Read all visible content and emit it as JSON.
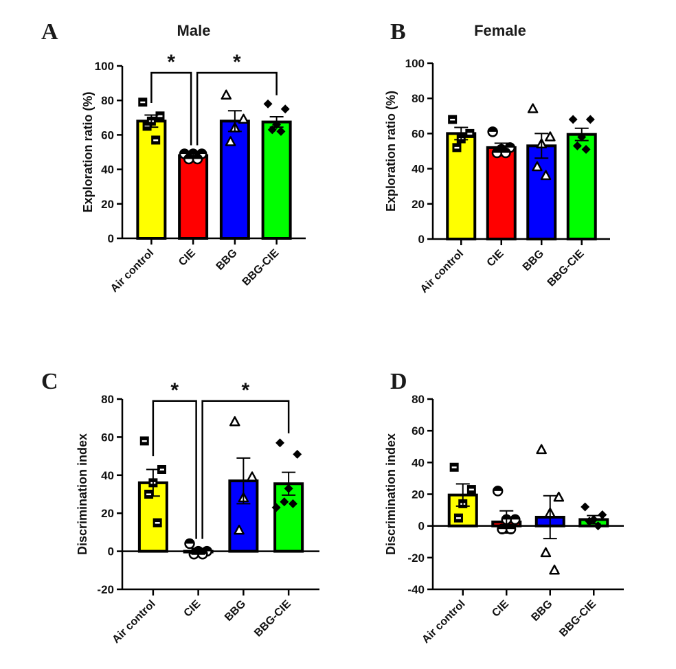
{
  "chart_data": [
    {
      "id": "A",
      "type": "bar",
      "panel_label": "A",
      "title": "Male",
      "xlabel": "",
      "ylabel": "Exploration ratio (%)",
      "ylim": [
        0,
        100
      ],
      "yticks": [
        0,
        20,
        40,
        60,
        80,
        100
      ],
      "categories": [
        "Air control",
        "CIE",
        "BBG",
        "BBG-CIE"
      ],
      "colors": [
        "#ffff00",
        "#ff0000",
        "#0000ff",
        "#00ff00"
      ],
      "markers": [
        "square",
        "circle",
        "triangle",
        "diamond"
      ],
      "values": [
        68,
        48,
        68,
        67.5
      ],
      "sem": [
        3.5,
        1,
        6,
        3
      ],
      "points": [
        [
          79,
          71,
          68,
          65,
          57
        ],
        [
          49,
          49,
          49,
          46,
          46
        ],
        [
          83,
          69,
          64,
          56
        ],
        [
          78,
          75,
          66,
          63,
          62
        ]
      ],
      "significance": [
        {
          "from": 0,
          "to": 1,
          "label": "*",
          "y": 96
        },
        {
          "from": 1,
          "to": 3,
          "label": "*",
          "y": 96
        }
      ]
    },
    {
      "id": "B",
      "type": "bar",
      "panel_label": "B",
      "title": "Female",
      "xlabel": "",
      "ylabel": "Exploration ratio (%)",
      "ylim": [
        0,
        100
      ],
      "yticks": [
        0,
        20,
        40,
        60,
        80,
        100
      ],
      "categories": [
        "Air control",
        "CIE",
        "BBG",
        "BBG-CIE"
      ],
      "colors": [
        "#ffff00",
        "#ff0000",
        "#0000ff",
        "#00ff00"
      ],
      "markers": [
        "square",
        "circle",
        "triangle",
        "diamond"
      ],
      "values": [
        60,
        52,
        53,
        59.5
      ],
      "sem": [
        3.5,
        2.5,
        7,
        3.5
      ],
      "points": [
        [
          68,
          60,
          57,
          52
        ],
        [
          61,
          52,
          51,
          49,
          49
        ],
        [
          74,
          58,
          54,
          41,
          36
        ],
        [
          68,
          68,
          58,
          53,
          51
        ]
      ],
      "significance": []
    },
    {
      "id": "C",
      "type": "bar",
      "panel_label": "C",
      "title": "",
      "xlabel": "",
      "ylabel": "Discrimination index",
      "ylim": [
        -20,
        80
      ],
      "yticks": [
        -20,
        0,
        20,
        40,
        60,
        80
      ],
      "categories": [
        "Air control",
        "CIE",
        "BBG",
        "BBG-CIE"
      ],
      "colors": [
        "#ffff00",
        "#ff0000",
        "#0000ff",
        "#00ff00"
      ],
      "markers": [
        "square",
        "circle",
        "triangle",
        "diamond"
      ],
      "values": [
        36,
        0,
        37,
        35.5
      ],
      "sem": [
        7,
        1.5,
        12,
        6
      ],
      "points": [
        [
          58,
          43,
          36,
          30,
          15
        ],
        [
          4,
          0,
          0,
          -1.5,
          -1.5
        ],
        [
          68,
          39,
          28,
          11
        ],
        [
          57,
          51,
          33,
          26,
          25,
          23
        ]
      ],
      "significance": [
        {
          "from": 0,
          "to": 1,
          "label": "*",
          "y": 79
        },
        {
          "from": 1,
          "to": 3,
          "label": "*",
          "y": 79
        }
      ]
    },
    {
      "id": "D",
      "type": "bar",
      "panel_label": "D",
      "title": "",
      "xlabel": "",
      "ylabel": "Discrimination index",
      "ylim": [
        -40,
        80
      ],
      "yticks": [
        -40,
        -20,
        0,
        20,
        40,
        60,
        80
      ],
      "categories": [
        "Air control",
        "CIE",
        "BBG",
        "BBG-CIE"
      ],
      "colors": [
        "#ffff00",
        "#ff0000",
        "#0000ff",
        "#00ff00"
      ],
      "markers": [
        "square",
        "circle",
        "triangle",
        "diamond"
      ],
      "values": [
        19.5,
        2.5,
        5.5,
        4
      ],
      "sem": [
        7,
        7,
        13.5,
        2.5
      ],
      "points": [
        [
          37,
          23,
          14,
          5
        ],
        [
          22,
          4,
          4,
          -2,
          -2
        ],
        [
          48,
          18,
          8,
          -17,
          -28
        ],
        [
          12,
          7,
          4,
          3,
          0
        ]
      ],
      "significance": []
    }
  ]
}
